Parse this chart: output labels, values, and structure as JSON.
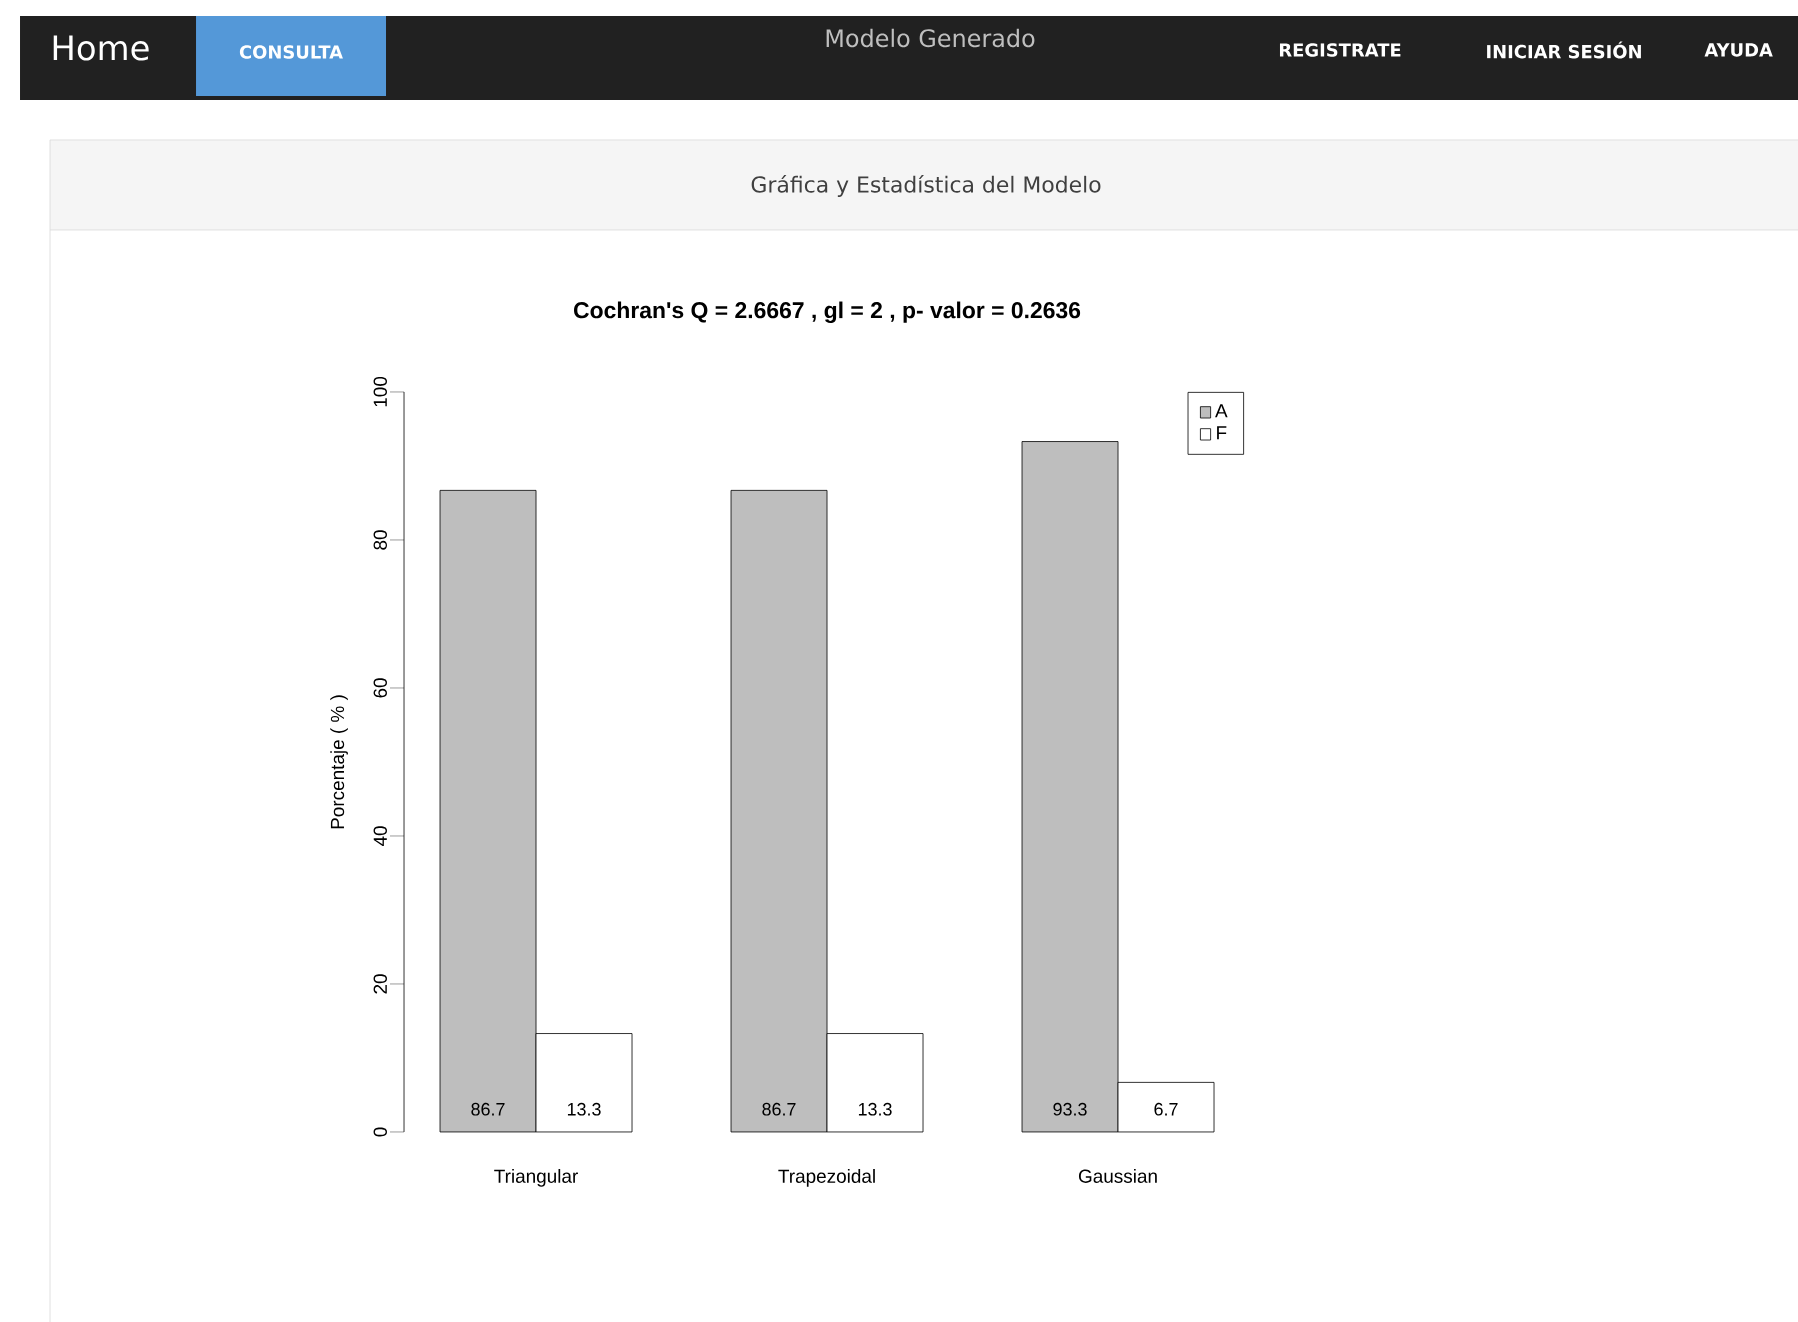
{
  "chart_data": {
    "type": "bar",
    "title": "Cochran's Q = 2.6667 , gl = 2 , p- valor = 0.2636",
    "subtitle": "Gráfica y Estadística del Modelo",
    "ylabel": "Porcentaje ( % )",
    "annotations": [
      "Home",
      "CONSULTA",
      "Modelo Generado",
      "REGISTRATE",
      "INICIAR SESIÓN",
      "AYUDA"
    ],
    "categories": [
      "Triangular",
      "Trapezoidal",
      "Gaussian"
    ],
    "series": [
      {
        "name": "A",
        "color": "#bebebe",
        "values": [
          86.7,
          86.7,
          93.3
        ]
      },
      {
        "name": "F",
        "color": "#ffffff",
        "values": [
          13.3,
          13.3,
          6.7
        ]
      }
    ],
    "ylim": [
      0,
      100
    ],
    "yticks": [
      0,
      20,
      40,
      60,
      80,
      100
    ],
    "data_labels": true,
    "legend": "top right"
  }
}
